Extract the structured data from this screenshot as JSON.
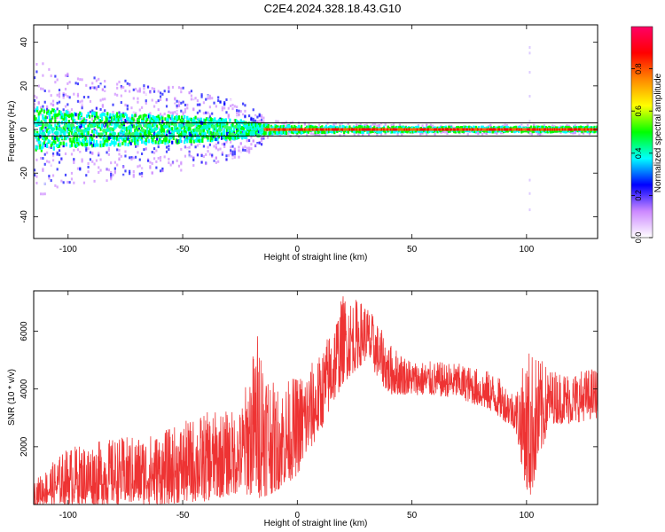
{
  "title": "C2E4.2024.328.18.43.G10",
  "chart_data": [
    {
      "type": "heatmap",
      "xlabel": "Height of straight line (km)",
      "ylabel": "Frequency (Hz)",
      "xlim": [
        -115,
        131
      ],
      "ylim": [
        -50,
        48
      ],
      "x_ticks": [
        -100,
        -50,
        0,
        50,
        100
      ],
      "y_ticks": [
        -40,
        -20,
        0,
        20,
        40
      ],
      "grid": false,
      "colorbar": {
        "label": "Normalized spectral amplitude",
        "range": [
          0.0,
          1.0
        ],
        "ticks": [
          0.0,
          0.2,
          0.4,
          0.6,
          0.8
        ],
        "colors": [
          "#ffffff",
          "#cc88ff",
          "#0000ff",
          "#00ffff",
          "#00ff00",
          "#ffff00",
          "#ff8800",
          "#ff0000",
          "#ff0066"
        ]
      },
      "reference_lines_hz": [
        3,
        -3
      ],
      "description_data": {
        "dominant_frequency_hz": 0,
        "spread_hz_by_height": [
          {
            "x": -115,
            "spread": 10
          },
          {
            "x": -100,
            "spread": 8
          },
          {
            "x": -50,
            "spread": 6
          },
          {
            "x": -25,
            "spread": 4
          },
          {
            "x": -15,
            "spread": 2
          },
          {
            "x": 0,
            "spread": 1.5
          },
          {
            "x": 50,
            "spread": 1
          },
          {
            "x": 131,
            "spread": 1
          }
        ]
      }
    },
    {
      "type": "line",
      "xlabel": "Height of straight line (km)",
      "ylabel": "SNR (10 * v/v)",
      "xlim": [
        -115,
        131
      ],
      "ylim": [
        0,
        7400
      ],
      "x_ticks": [
        -100,
        -50,
        0,
        50,
        100
      ],
      "y_ticks": [
        2000,
        4000,
        6000
      ],
      "grid": false,
      "color": "#ee3333",
      "envelope": [
        {
          "x": -115,
          "min": 0,
          "max": 800
        },
        {
          "x": -100,
          "min": 0,
          "max": 2000
        },
        {
          "x": -80,
          "min": 0,
          "max": 2300
        },
        {
          "x": -60,
          "min": 0,
          "max": 2500
        },
        {
          "x": -40,
          "min": 100,
          "max": 3200
        },
        {
          "x": -25,
          "min": 400,
          "max": 3300
        },
        {
          "x": -17,
          "min": 200,
          "max": 6200
        },
        {
          "x": -10,
          "min": 400,
          "max": 4100
        },
        {
          "x": 0,
          "min": 1000,
          "max": 4500
        },
        {
          "x": 10,
          "min": 2500,
          "max": 5200
        },
        {
          "x": 20,
          "min": 4200,
          "max": 7300
        },
        {
          "x": 30,
          "min": 5000,
          "max": 7000
        },
        {
          "x": 40,
          "min": 3800,
          "max": 5600
        },
        {
          "x": 50,
          "min": 3800,
          "max": 5000
        },
        {
          "x": 70,
          "min": 3700,
          "max": 4900
        },
        {
          "x": 85,
          "min": 3200,
          "max": 4600
        },
        {
          "x": 95,
          "min": 2600,
          "max": 3900
        },
        {
          "x": 101,
          "min": 0,
          "max": 5500
        },
        {
          "x": 110,
          "min": 2800,
          "max": 4700
        },
        {
          "x": 120,
          "min": 2800,
          "max": 4600
        },
        {
          "x": 131,
          "min": 3000,
          "max": 4800
        }
      ]
    }
  ]
}
